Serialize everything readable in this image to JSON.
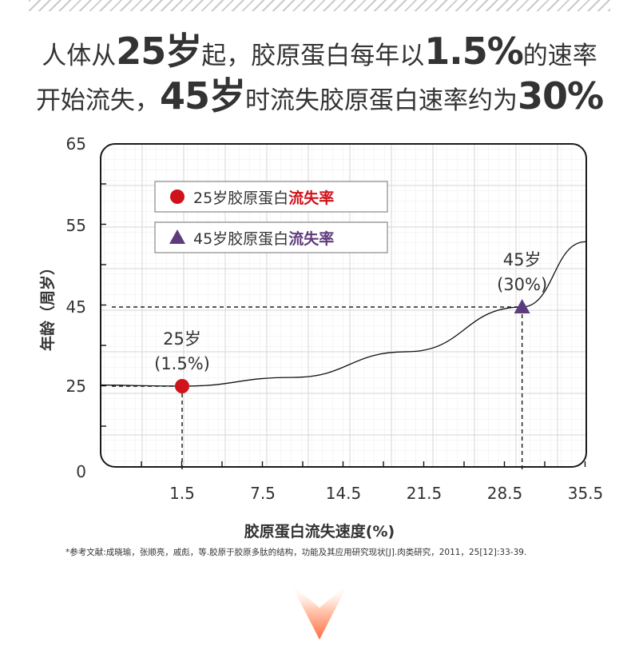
{
  "headline": {
    "line1": [
      {
        "text": "人体从",
        "style": "t"
      },
      {
        "text": "25岁",
        "style": "b"
      },
      {
        "text": "起，胶原蛋白每年以",
        "style": "t"
      },
      {
        "text": "1.5%",
        "style": "b"
      },
      {
        "text": "的速率",
        "style": "t"
      }
    ],
    "line2": [
      {
        "text": "开始流失，",
        "style": "t"
      },
      {
        "text": "45岁",
        "style": "b"
      },
      {
        "text": "时流失胶原蛋白速率约为",
        "style": "t"
      },
      {
        "text": "30%",
        "style": "b"
      }
    ]
  },
  "chart_data": {
    "type": "line",
    "xlabel": "胶原蛋白流失速度(%)",
    "ylabel": "年龄（周岁）",
    "x_ticks": [
      "1.5",
      "7.5",
      "14.5",
      "21.5",
      "28.5",
      "35.5"
    ],
    "y_ticks": [
      "0",
      "25",
      "45",
      "55",
      "65"
    ],
    "grid": true,
    "legend_position": "top-left",
    "legend": [
      {
        "marker": "circle",
        "color": "#d0121b",
        "prefix": "25岁胶原蛋白",
        "highlight": "流失率",
        "highlight_color": "#d0121b"
      },
      {
        "marker": "triangle",
        "color": "#5e3b7d",
        "prefix": "45岁胶原蛋白",
        "highlight": "流失率",
        "highlight_color": "#5e3b7d"
      }
    ],
    "points": [
      {
        "x": 1.5,
        "y": 25,
        "marker": "circle",
        "color": "#d0121b",
        "label_line1": "25岁",
        "label_line2": "(1.5%)"
      },
      {
        "x": 30,
        "y": 45,
        "marker": "triangle",
        "color": "#5e3b7d",
        "label_line1": "45岁",
        "label_line2": "(30%)"
      }
    ],
    "curve": {
      "x": [
        -5.2,
        1.5,
        10,
        20,
        30,
        35.5
      ],
      "y": [
        25.3,
        25,
        27.2,
        33.7,
        45,
        53
      ]
    }
  },
  "reference": "*参考文献:成晓瑜，张顺亮，戚彪，等.胶原于胶原多肽的结构，功能及其应用研究现状[J].肉类研究，2011，25[12]:33-39."
}
